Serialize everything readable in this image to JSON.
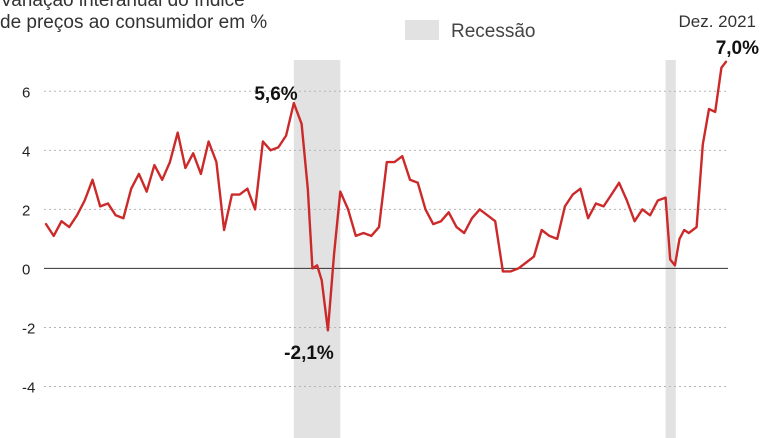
{
  "chart_data": {
    "type": "line",
    "title_lines": [
      "Variação interanual do índice",
      "de preços ao consumidor em %"
    ],
    "legend": {
      "recession_label": "Recessão",
      "placement": "top"
    },
    "ylim": [
      -5,
      7.5
    ],
    "yticks": [
      -4,
      -2,
      0,
      2,
      4,
      6
    ],
    "ytick_labels": [
      "-4",
      "-2",
      "0",
      "2",
      "4",
      "6"
    ],
    "x_range": [
      2000.0,
      2021.95
    ],
    "grid": "horizontal dotted",
    "series": [
      {
        "color": "#cc2a2a",
        "x": [
          2000.0,
          2000.25,
          2000.5,
          2000.75,
          2001.0,
          2001.25,
          2001.5,
          2001.75,
          2002.0,
          2002.25,
          2002.5,
          2002.75,
          2003.0,
          2003.25,
          2003.5,
          2003.75,
          2004.0,
          2004.25,
          2004.5,
          2004.75,
          2005.0,
          2005.25,
          2005.5,
          2005.75,
          2006.0,
          2006.25,
          2006.5,
          2006.75,
          2007.0,
          2007.25,
          2007.5,
          2007.75,
          2008.0,
          2008.25,
          2008.45,
          2008.6,
          2008.75,
          2008.9,
          2009.1,
          2009.3,
          2009.5,
          2009.75,
          2010.0,
          2010.25,
          2010.5,
          2010.75,
          2011.0,
          2011.25,
          2011.5,
          2011.75,
          2012.0,
          2012.25,
          2012.5,
          2012.75,
          2013.0,
          2013.25,
          2013.5,
          2013.75,
          2014.0,
          2014.25,
          2014.5,
          2014.75,
          2015.0,
          2015.25,
          2015.5,
          2015.75,
          2016.0,
          2016.25,
          2016.5,
          2016.75,
          2017.0,
          2017.25,
          2017.5,
          2017.75,
          2018.0,
          2018.25,
          2018.5,
          2018.75,
          2019.0,
          2019.25,
          2019.5,
          2019.75,
          2020.0,
          2020.15,
          2020.3,
          2020.45,
          2020.6,
          2020.75,
          2021.0,
          2021.2,
          2021.4,
          2021.6,
          2021.8,
          2021.95
        ],
        "y": [
          1.5,
          1.1,
          1.6,
          1.4,
          1.8,
          2.3,
          3.0,
          2.1,
          2.2,
          1.8,
          1.7,
          2.7,
          3.2,
          2.6,
          3.5,
          3.0,
          3.6,
          4.6,
          3.4,
          3.9,
          3.2,
          4.3,
          3.6,
          1.3,
          2.5,
          2.5,
          2.7,
          2.0,
          4.3,
          4.0,
          4.1,
          4.5,
          5.6,
          4.9,
          2.7,
          0.0,
          0.1,
          -0.4,
          -2.1,
          0.5,
          2.6,
          2.0,
          1.1,
          1.2,
          1.1,
          1.4,
          3.6,
          3.6,
          3.8,
          3.0,
          2.9,
          2.0,
          1.5,
          1.6,
          1.9,
          1.4,
          1.2,
          1.7,
          2.0,
          1.8,
          1.6,
          -0.1,
          -0.1,
          0.0,
          0.2,
          0.4,
          1.3,
          1.1,
          1.0,
          2.1,
          2.5,
          2.7,
          1.7,
          2.2,
          2.1,
          2.5,
          2.9,
          2.3,
          1.6,
          2.0,
          1.8,
          2.3,
          2.4,
          0.3,
          0.1,
          1.0,
          1.3,
          1.2,
          1.4,
          4.2,
          5.4,
          5.3,
          6.8,
          7.0
        ]
      }
    ],
    "recessions": [
      [
        2008.0,
        2009.5
      ],
      [
        2020.0,
        2020.33
      ]
    ],
    "annotations": [
      {
        "text": "5,6%",
        "x": 2008.0,
        "y": 5.6,
        "position": "above"
      },
      {
        "text": "-2,1%",
        "x": 2009.1,
        "y": -2.1,
        "position": "below"
      },
      {
        "text": "7,0%",
        "x": 2021.95,
        "y": 7.0,
        "position": "above-left"
      },
      {
        "text": "Dez. 2021",
        "x": 2021.95,
        "y": 7.0,
        "position": "top"
      }
    ]
  }
}
